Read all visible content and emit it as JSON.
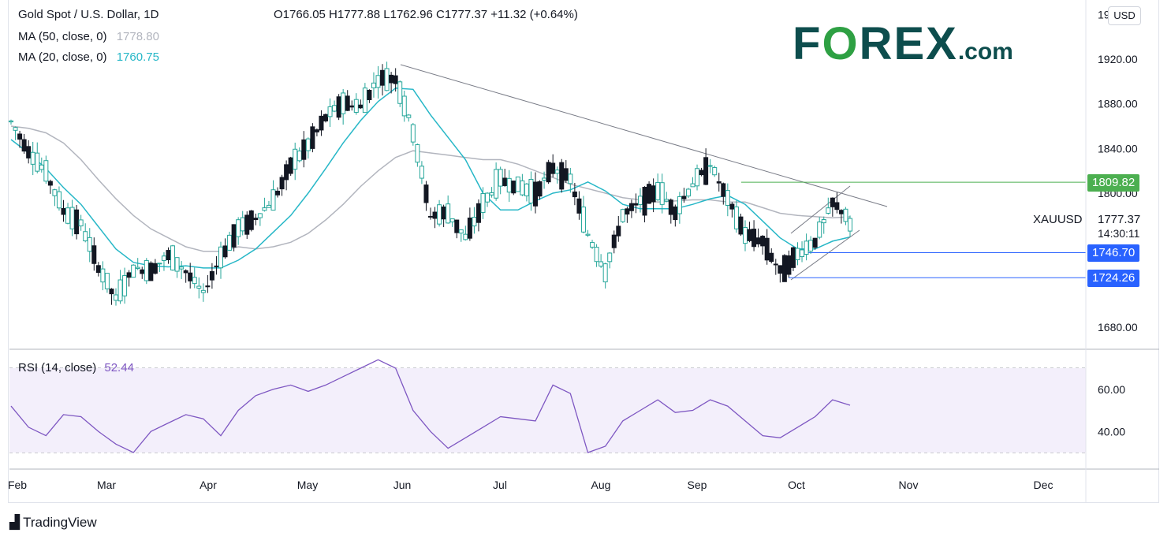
{
  "header": {
    "symbol": "Gold Spot / U.S. Dollar, 1D",
    "ohlc": "O1766.05  H1777.88  L1762.96  C1777.37  +11.32 (+0.64%)",
    "ma50_label": "MA (50, close, 0)",
    "ma50_value": "1778.80",
    "ma20_label": "MA (20, close, 0)",
    "ma20_value": "1760.75",
    "currency": "USD"
  },
  "logo": {
    "main": "FOREX",
    "suffix": ".com"
  },
  "branding": {
    "tradingview": "TradingView"
  },
  "price_axis_labels": [
    "1920.00",
    "1880.00",
    "1840.00",
    "1800.00",
    "1680.00"
  ],
  "price_tags": {
    "r1": "1809.82",
    "last_symbol": "XAUUSD",
    "last_price": "1777.37",
    "countdown": "14:30:11",
    "s1": "1746.70",
    "s2": "1724.26"
  },
  "rsi": {
    "label": "RSI (14, close)",
    "value": "52.44",
    "axis": [
      "60.00",
      "40.00"
    ]
  },
  "month_labels": [
    "Feb",
    "Mar",
    "Apr",
    "May",
    "Jun",
    "Jul",
    "Aug",
    "Sep",
    "Oct",
    "Nov",
    "Dec"
  ],
  "colors": {
    "up": "#26a69a",
    "down": "#131722",
    "ma20": "#26b7c7",
    "ma50": "#b2b5be",
    "trend": "#787b86",
    "resistance": "#4caf50",
    "support": "#2962ff",
    "rsi_line": "#7e57c2",
    "rsi_band": "#f3effb",
    "logo": "#0d4d4d",
    "logo_o": "#2ea043"
  },
  "chart_data": {
    "type": "candlestick",
    "title": "Gold Spot / U.S. Dollar, 1D",
    "x_months": [
      "Feb",
      "Mar",
      "Apr",
      "May",
      "Jun",
      "Jul",
      "Aug",
      "Sep",
      "Oct",
      "Nov",
      "Dec"
    ],
    "y_axis_ticks": [
      1680,
      1800,
      1840,
      1880,
      1920
    ],
    "ylim": [
      1660,
      1950
    ],
    "close_weekly": [
      1864,
      1838,
      1818,
      1784,
      1772,
      1734,
      1705,
      1732,
      1731,
      1744,
      1730,
      1710,
      1743,
      1768,
      1778,
      1793,
      1825,
      1843,
      1868,
      1881,
      1877,
      1902,
      1903,
      1855,
      1780,
      1782,
      1760,
      1790,
      1812,
      1806,
      1800,
      1823,
      1812,
      1763,
      1730,
      1780,
      1792,
      1803,
      1784,
      1808,
      1826,
      1794,
      1763,
      1757,
      1730,
      1745,
      1757,
      1791,
      1777.37
    ],
    "ma20_weekly": [
      1848,
      1836,
      1822,
      1805,
      1790,
      1770,
      1750,
      1738,
      1735,
      1734,
      1735,
      1733,
      1733,
      1740,
      1750,
      1765,
      1780,
      1800,
      1822,
      1845,
      1865,
      1882,
      1894,
      1893,
      1870,
      1850,
      1830,
      1800,
      1785,
      1785,
      1793,
      1800,
      1803,
      1810,
      1802,
      1790,
      1786,
      1786,
      1786,
      1790,
      1795,
      1798,
      1790,
      1775,
      1760,
      1750,
      1750,
      1757,
      1760.75
    ],
    "ma50_weekly": [
      1860,
      1858,
      1854,
      1845,
      1830,
      1812,
      1795,
      1780,
      1768,
      1760,
      1752,
      1748,
      1748,
      1752,
      1750,
      1752,
      1756,
      1764,
      1776,
      1790,
      1806,
      1820,
      1832,
      1838,
      1836,
      1834,
      1832,
      1830,
      1830,
      1826,
      1820,
      1814,
      1808,
      1804,
      1800,
      1796,
      1794,
      1792,
      1793,
      1794,
      1794,
      1792,
      1792,
      1787,
      1782,
      1780,
      1779,
      1778,
      1778.8
    ],
    "annotations": {
      "resistance": 1809.82,
      "last": 1777.37,
      "support_1": 1746.7,
      "support_2": 1724.26
    },
    "rsi_series": [
      52,
      42,
      38,
      48,
      47,
      40,
      34,
      30,
      40,
      44,
      48,
      46,
      38,
      50,
      57,
      60,
      62,
      59,
      62,
      66,
      70,
      74,
      70,
      50,
      40,
      32,
      37,
      42,
      47,
      46,
      45,
      62,
      58,
      30,
      33,
      45,
      50,
      55,
      49,
      50,
      55,
      52,
      45,
      38,
      37,
      42,
      47,
      55,
      52.44
    ],
    "rsi_ylim": [
      20,
      80
    ]
  }
}
